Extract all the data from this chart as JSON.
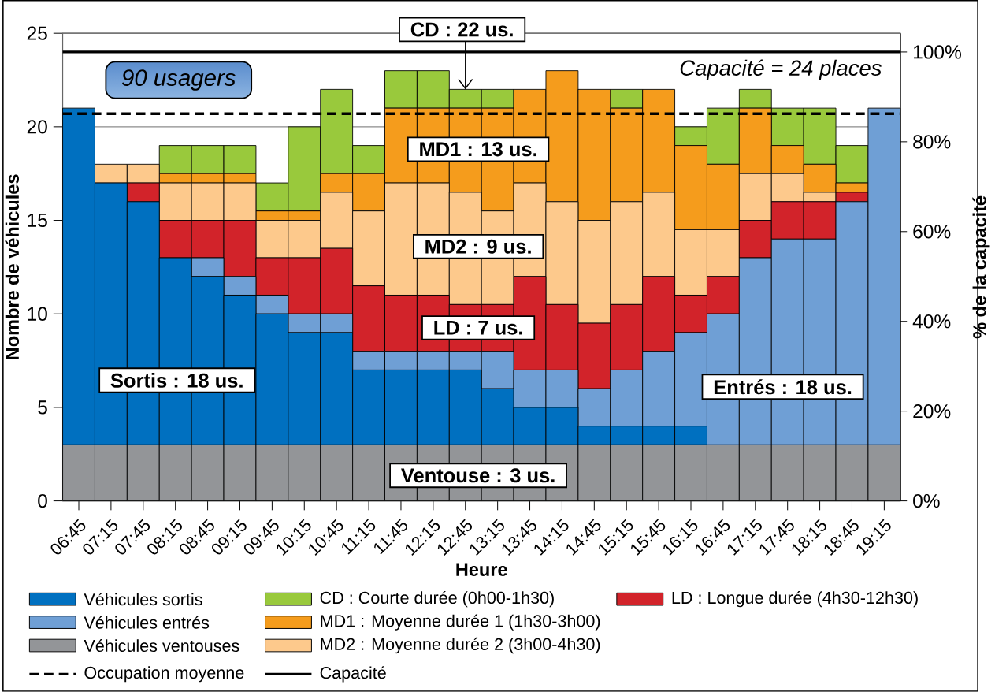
{
  "chart_data": {
    "type": "bar",
    "stacked": true,
    "xlabel": "Heure",
    "ylabel": "Nombre de véhicules",
    "y2label": "% de la capacité",
    "categories": [
      "06:45",
      "07:15",
      "07:45",
      "08:15",
      "08:45",
      "09:15",
      "09:45",
      "10:15",
      "10:45",
      "11:15",
      "11:45",
      "12:15",
      "12:45",
      "13:15",
      "13:45",
      "14:15",
      "14:45",
      "15:15",
      "15:45",
      "16:15",
      "16:45",
      "17:15",
      "17:45",
      "18:15",
      "18:45",
      "19:15"
    ],
    "series": [
      {
        "name": "Véhicules ventouses",
        "color": "#939598",
        "values": [
          3,
          3,
          3,
          3,
          3,
          3,
          3,
          3,
          3,
          3,
          3,
          3,
          3,
          3,
          3,
          3,
          3,
          3,
          3,
          3,
          3,
          3,
          3,
          3,
          3,
          3
        ]
      },
      {
        "name": "Véhicules sortis",
        "color": "#0070c0",
        "values": [
          18,
          14,
          13,
          10,
          9,
          8,
          7,
          6,
          6,
          4,
          4,
          4,
          4,
          3,
          2,
          2,
          1,
          1,
          1,
          1,
          0,
          0,
          0,
          0,
          0,
          0
        ]
      },
      {
        "name": "Véhicules entrés",
        "color": "#6f9fd5",
        "values": [
          0,
          0,
          0,
          0,
          1,
          1,
          1,
          1,
          1,
          1,
          1,
          1,
          1,
          2,
          2,
          2,
          2,
          3,
          4,
          5,
          7,
          10,
          11,
          11,
          13,
          18
        ]
      },
      {
        "name": "LD :    Longue durée    (4h30-12h30)",
        "color": "#d2232a",
        "values": [
          0,
          0,
          1,
          2,
          2,
          3,
          2,
          3,
          3.5,
          3.5,
          3,
          3,
          2.5,
          2.5,
          5,
          3.5,
          3.5,
          3.5,
          4,
          2,
          2,
          2,
          2,
          2,
          0.5,
          0
        ]
      },
      {
        "name": "MD2 : Moyenne durée 2  (3h00-4h30)",
        "color": "#fdc98c",
        "values": [
          0,
          1,
          1,
          2,
          2,
          2,
          2,
          2,
          3,
          4,
          6,
          6,
          6,
          5,
          5,
          5.5,
          5.5,
          5.5,
          4.5,
          3.5,
          2.5,
          2.5,
          1.5,
          0.5,
          0,
          0
        ]
      },
      {
        "name": "MD1 : Moyenne durée 1  (1h30-3h00)",
        "color": "#f59c1c",
        "values": [
          0,
          0,
          0,
          0.5,
          0.5,
          0.5,
          0.5,
          0.5,
          1,
          2,
          4,
          4,
          4.5,
          5.5,
          5,
          7,
          7,
          5,
          5.5,
          4.5,
          3.5,
          3.5,
          1.5,
          1.5,
          0.5,
          0
        ]
      },
      {
        "name": "CD :    Courte durée    (0h00-1h30)",
        "color": "#99c93c",
        "values": [
          0,
          0,
          0,
          1.5,
          1.5,
          1.5,
          1.5,
          4.5,
          4.5,
          1.5,
          2,
          2,
          1,
          1,
          0,
          0,
          0,
          1,
          0,
          1,
          3,
          1,
          2,
          3,
          2,
          0
        ]
      }
    ],
    "ylim": [
      0,
      25
    ],
    "yticks": [
      0,
      5,
      10,
      15,
      20,
      25
    ],
    "y2lim": [
      0,
      104.17
    ],
    "y2ticks": [
      {
        "value": 0,
        "label": "0%"
      },
      {
        "value": 20,
        "label": "20%"
      },
      {
        "value": 40,
        "label": "40%"
      },
      {
        "value": 60,
        "label": "60%"
      },
      {
        "value": 80,
        "label": "80%"
      },
      {
        "value": 100,
        "label": "100%"
      }
    ],
    "ref_lines": [
      {
        "axis": "y",
        "value": 20.7,
        "label": "Occupation moyenne",
        "color": "#000000",
        "line_style": "dashed"
      },
      {
        "axis": "y",
        "value": 24,
        "label": "Capacité",
        "color": "#000000",
        "line_style": "solid"
      }
    ],
    "annotations": [
      "90 usagers",
      "Capacité = 24 places",
      {
        "text": "CD : 22 us.",
        "x": "12:45",
        "y": 22
      },
      "MD1 : 13 us.",
      "MD2 : 9 us.",
      "LD : 7 us.",
      "Sortis : 18 us.",
      "Entrés : 18 us.",
      "Ventouse : 3 us."
    ],
    "grid": "y",
    "legend": "bottom"
  }
}
